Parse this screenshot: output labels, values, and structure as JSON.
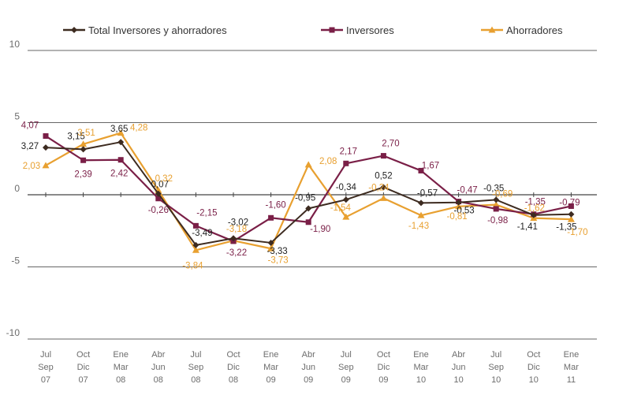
{
  "chart_data": {
    "type": "line",
    "title": "",
    "xlabel": "",
    "ylabel": "",
    "ylim": [
      -10,
      10
    ],
    "yticks": [
      10,
      5,
      0,
      -5,
      -10
    ],
    "categories": [
      [
        "Jul",
        "Sep",
        "07"
      ],
      [
        "Oct",
        "Dic",
        "07"
      ],
      [
        "Ene",
        "Mar",
        "08"
      ],
      [
        "Abr",
        "Jun",
        "08"
      ],
      [
        "Jul",
        "Sep",
        "08"
      ],
      [
        "Oct",
        "Dic",
        "08"
      ],
      [
        "Ene",
        "Mar",
        "09"
      ],
      [
        "Abr",
        "Jun",
        "09"
      ],
      [
        "Jul",
        "Sep",
        "09"
      ],
      [
        "Oct",
        "Dic",
        "09"
      ],
      [
        "Ene",
        "Mar",
        "10"
      ],
      [
        "Abr",
        "Jun",
        "10"
      ],
      [
        "Jul",
        "Sep",
        "10"
      ],
      [
        "Oct",
        "Dic",
        "10"
      ],
      [
        "Ene",
        "Mar",
        "11"
      ]
    ],
    "legend_position": "top",
    "series": [
      {
        "name": "Total Inversores y ahorradores",
        "color": "#3d2b20",
        "marker": "diamond",
        "values": [
          3.27,
          3.15,
          3.65,
          0.07,
          -3.49,
          -3.02,
          -3.33,
          -0.95,
          -0.34,
          0.52,
          -0.57,
          -0.53,
          -0.35,
          -1.41,
          -1.35
        ],
        "labels": [
          "3,27",
          "3,15",
          "3,65",
          "0,07",
          "-3,49",
          "-3,02",
          "-3,33",
          "-0,95",
          "-0,34",
          "0,52",
          "-0,57",
          "-0,53",
          "-0,35",
          "-1,41",
          "-1,35"
        ]
      },
      {
        "name": "Inversores",
        "color": "#7a1f47",
        "marker": "square",
        "values": [
          4.07,
          2.39,
          2.42,
          -0.26,
          -2.15,
          -3.22,
          -1.6,
          -1.9,
          2.17,
          2.7,
          1.67,
          -0.47,
          -0.98,
          -1.35,
          -0.79
        ],
        "labels": [
          "4,07",
          "2,39",
          "2,42",
          "-0,26",
          "-2,15",
          "-3,22",
          "-1,60",
          "-1,90",
          "2,17",
          "2,70",
          "1,67",
          "-0,47",
          "-0,98",
          "-1,35",
          "-0,79"
        ]
      },
      {
        "name": "Ahorradores",
        "color": "#e8a030",
        "marker": "triangle",
        "values": [
          2.03,
          3.51,
          4.28,
          0.32,
          -3.84,
          -3.18,
          -3.73,
          2.08,
          -1.54,
          -0.24,
          -1.43,
          -0.81,
          -0.69,
          -1.62,
          -1.7
        ],
        "labels": [
          "2,03",
          "3,51",
          "4,28",
          "0,32",
          "-3,84",
          "-3,18",
          "-3,73",
          "2,08",
          "-1,54",
          "-0,24",
          "-1,43",
          "-0,81",
          "-0,69",
          "-1,62",
          "-1,70"
        ]
      }
    ]
  }
}
